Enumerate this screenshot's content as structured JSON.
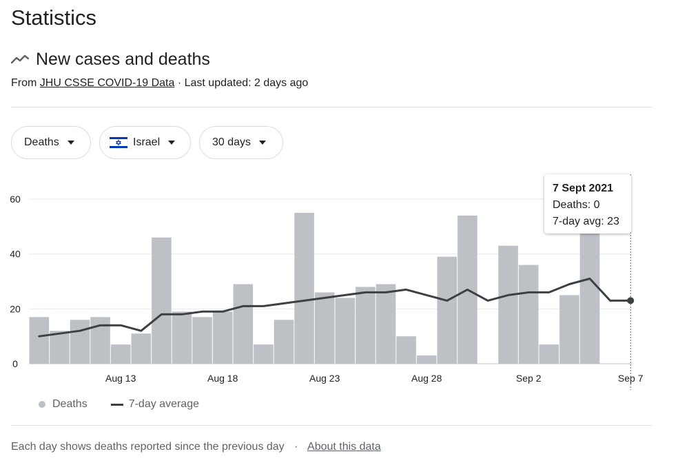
{
  "page": {
    "title": "Statistics"
  },
  "section": {
    "title": "New cases and deaths",
    "source_prefix": "From",
    "source_link": "JHU CSSE COVID-19 Data",
    "updated": "· Last updated: 2 days ago"
  },
  "filters": {
    "metric": "Deaths",
    "country": "Israel",
    "range": "30 days"
  },
  "tooltip": {
    "date": "7 Sept 2021",
    "deaths": "Deaths: 0",
    "avg": "7-day avg: 23"
  },
  "legend": {
    "bars": "Deaths",
    "line": "7-day average"
  },
  "footer": {
    "note": "Each day shows deaths reported since the previous day",
    "separator": "·",
    "link": "About this data"
  },
  "colors": {
    "bar": "#bdc1c6",
    "line": "#3c4043",
    "grid": "#e8eaed"
  },
  "chart_data": {
    "type": "bar",
    "ylim": [
      0,
      60
    ],
    "yticks": [
      0,
      20,
      40,
      60
    ],
    "x_tick_labels": [
      {
        "day": 4,
        "label": "Aug 13"
      },
      {
        "day": 9,
        "label": "Aug 18"
      },
      {
        "day": 14,
        "label": "Aug 23"
      },
      {
        "day": 19,
        "label": "Aug 28"
      },
      {
        "day": 24,
        "label": "Sep 2"
      },
      {
        "day": 29,
        "label": "Sep 7"
      }
    ],
    "series": [
      {
        "name": "Deaths",
        "type": "bar",
        "values": [
          17,
          12,
          16,
          17,
          7,
          11,
          46,
          19,
          17,
          19,
          29,
          7,
          16,
          55,
          26,
          24,
          28,
          29,
          10,
          3,
          39,
          54,
          0,
          43,
          36,
          7,
          25,
          48,
          0,
          0
        ]
      },
      {
        "name": "7-day average",
        "type": "line",
        "values": [
          10,
          11,
          12,
          14,
          14,
          12,
          18,
          18,
          19,
          19,
          21,
          21,
          22,
          23,
          24,
          25,
          26,
          26,
          27,
          25,
          23,
          27,
          23,
          25,
          26,
          26,
          29,
          31,
          23,
          23
        ]
      }
    ]
  }
}
